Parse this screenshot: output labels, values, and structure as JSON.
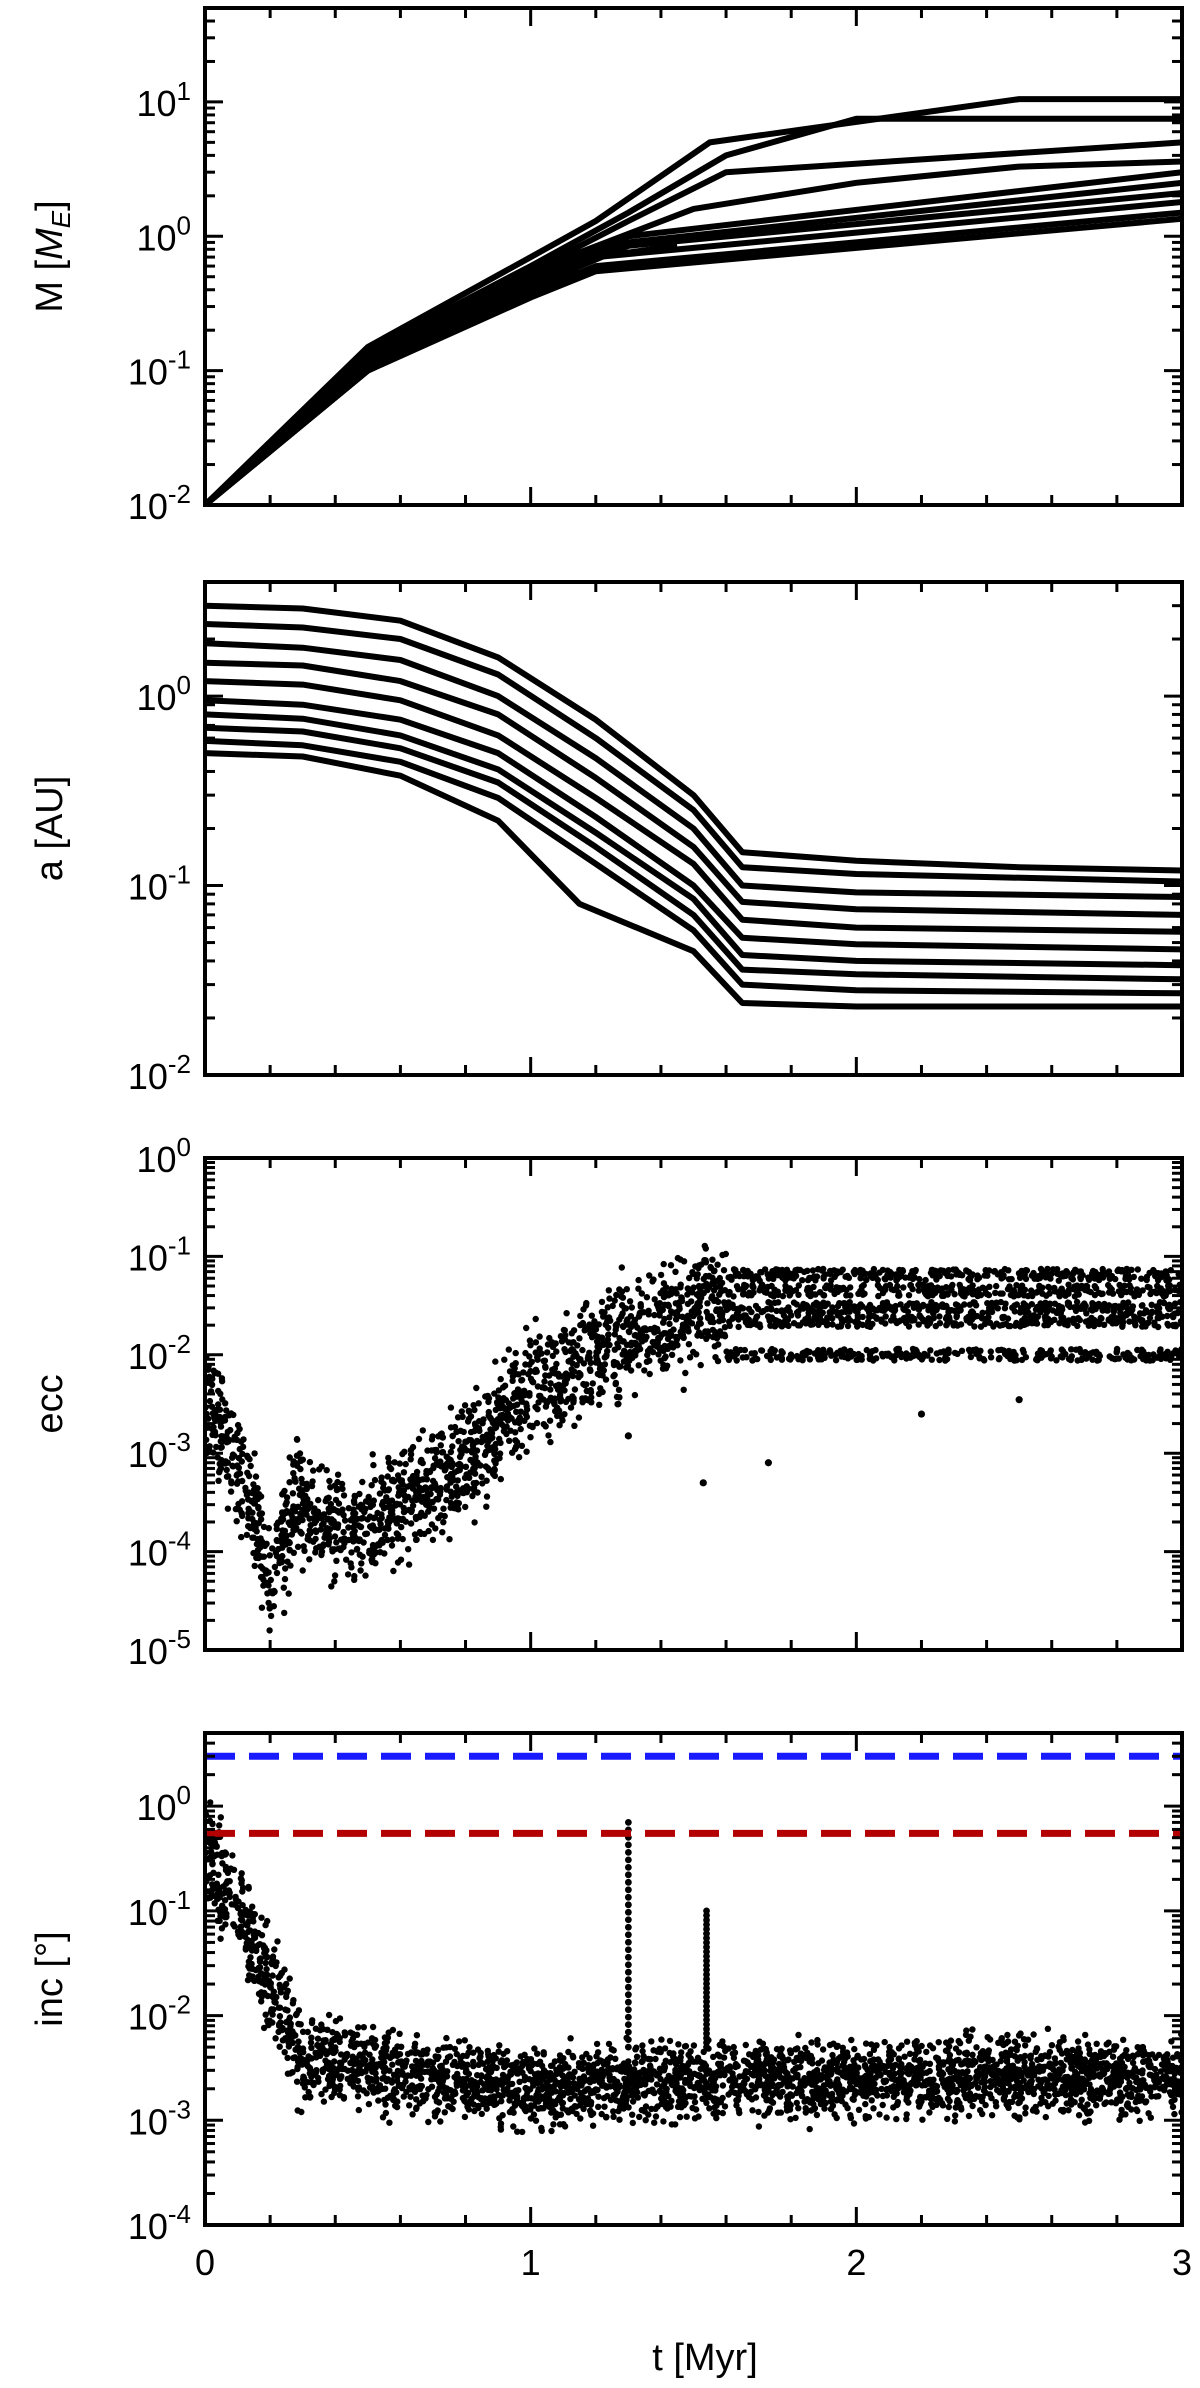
{
  "chart_data": [
    {
      "type": "line",
      "ylabel": "M [M_E]",
      "ylabel_parts": {
        "main": "M [",
        "italic": "M",
        "sub": "E",
        "end": "]"
      },
      "yscale": "log",
      "xlim": [
        0,
        3
      ],
      "ylim": [
        0.01,
        50
      ],
      "xticks": [
        0,
        1,
        2,
        3
      ],
      "yticks": [
        0.01,
        0.1,
        1,
        10
      ],
      "ytick_labels": [
        {
          "base": "10",
          "exp": "-2"
        },
        {
          "base": "10",
          "exp": "-1"
        },
        {
          "base": "10",
          "exp": "0"
        },
        {
          "base": "10",
          "exp": "1"
        }
      ],
      "color": "#000000",
      "series": [
        {
          "t": [
            0,
            0.5,
            1.0,
            1.2,
            1.55,
            2.5,
            3.0
          ],
          "values": [
            0.01,
            0.15,
            0.7,
            1.3,
            5.0,
            10.5,
            10.5
          ]
        },
        {
          "t": [
            0,
            0.5,
            1.0,
            1.3,
            1.6,
            2.0,
            3.0
          ],
          "values": [
            0.01,
            0.14,
            0.6,
            1.5,
            4.0,
            7.5,
            7.5
          ]
        },
        {
          "t": [
            0,
            0.5,
            1.0,
            1.3,
            1.6,
            3.0
          ],
          "values": [
            0.01,
            0.14,
            0.55,
            1.3,
            3.0,
            5.0
          ]
        },
        {
          "t": [
            0,
            0.5,
            1.0,
            1.5,
            2.0,
            2.5,
            3.0
          ],
          "values": [
            0.01,
            0.13,
            0.55,
            1.6,
            2.5,
            3.3,
            3.6
          ]
        },
        {
          "t": [
            0,
            0.5,
            1.0,
            1.3,
            3.0
          ],
          "values": [
            0.01,
            0.12,
            0.5,
            1.0,
            3.0
          ]
        },
        {
          "t": [
            0,
            0.5,
            1.0,
            1.3,
            3.0
          ],
          "values": [
            0.01,
            0.12,
            0.45,
            0.9,
            2.5
          ]
        },
        {
          "t": [
            0,
            0.5,
            1.0,
            1.3,
            3.0
          ],
          "values": [
            0.01,
            0.11,
            0.42,
            0.85,
            2.1
          ]
        },
        {
          "t": [
            0,
            0.5,
            1.0,
            1.2,
            3.0
          ],
          "values": [
            0.01,
            0.11,
            0.4,
            0.7,
            1.8
          ]
        },
        {
          "t": [
            0,
            0.5,
            1.0,
            1.2,
            3.0
          ],
          "values": [
            0.01,
            0.1,
            0.38,
            0.6,
            1.5
          ]
        },
        {
          "t": [
            0,
            0.5,
            1.0,
            1.2,
            3.0
          ],
          "values": [
            0.01,
            0.1,
            0.35,
            0.55,
            1.35
          ]
        },
        {
          "t": [
            0,
            0.5,
            0.95,
            1.05,
            1.2,
            1.45
          ],
          "values": [
            0.01,
            0.1,
            0.34,
            0.52,
            0.7,
            0.85
          ]
        },
        {
          "t": [
            0,
            0.5,
            0.9,
            1.05,
            1.2
          ],
          "values": [
            0.01,
            0.1,
            0.32,
            0.5,
            0.55
          ]
        }
      ]
    },
    {
      "type": "line",
      "ylabel": "a [AU]",
      "yscale": "log",
      "xlim": [
        0,
        3
      ],
      "ylim": [
        0.01,
        4
      ],
      "xticks": [
        0,
        1,
        2,
        3
      ],
      "yticks": [
        0.01,
        0.1,
        1
      ],
      "ytick_labels": [
        {
          "base": "10",
          "exp": "-2"
        },
        {
          "base": "10",
          "exp": "-1"
        },
        {
          "base": "10",
          "exp": "0"
        }
      ],
      "color": "#000000",
      "series": [
        {
          "t": [
            0,
            0.3,
            0.6,
            0.9,
            1.2,
            1.5,
            1.65,
            2.0,
            2.5,
            3.0
          ],
          "values": [
            3.0,
            2.9,
            2.5,
            1.6,
            0.75,
            0.3,
            0.15,
            0.135,
            0.125,
            0.12
          ]
        },
        {
          "t": [
            0,
            0.3,
            0.6,
            0.9,
            1.2,
            1.5,
            1.65,
            2.0,
            3.0
          ],
          "values": [
            2.4,
            2.3,
            2.0,
            1.3,
            0.6,
            0.25,
            0.125,
            0.115,
            0.105
          ]
        },
        {
          "t": [
            0,
            0.3,
            0.6,
            0.9,
            1.2,
            1.5,
            1.65,
            2.0,
            3.0
          ],
          "values": [
            1.9,
            1.8,
            1.55,
            1.0,
            0.47,
            0.2,
            0.1,
            0.092,
            0.087
          ]
        },
        {
          "t": [
            0,
            0.3,
            0.6,
            0.9,
            1.2,
            1.5,
            1.65,
            2.0,
            3.0
          ],
          "values": [
            1.5,
            1.45,
            1.2,
            0.8,
            0.37,
            0.16,
            0.082,
            0.075,
            0.07
          ]
        },
        {
          "t": [
            0,
            0.3,
            0.6,
            0.9,
            1.2,
            1.5,
            1.65,
            2.0,
            3.0
          ],
          "values": [
            1.2,
            1.15,
            0.95,
            0.62,
            0.29,
            0.13,
            0.066,
            0.06,
            0.057
          ]
        },
        {
          "t": [
            0,
            0.3,
            0.6,
            0.9,
            1.2,
            1.5,
            1.65,
            2.0,
            3.0
          ],
          "values": [
            0.95,
            0.9,
            0.75,
            0.5,
            0.23,
            0.1,
            0.053,
            0.049,
            0.046
          ]
        },
        {
          "t": [
            0,
            0.3,
            0.6,
            0.9,
            1.2,
            1.5,
            1.65,
            2.0,
            3.0
          ],
          "values": [
            0.8,
            0.76,
            0.62,
            0.41,
            0.19,
            0.085,
            0.043,
            0.04,
            0.038
          ]
        },
        {
          "t": [
            0,
            0.3,
            0.6,
            0.9,
            1.2,
            1.5,
            1.65,
            2.0,
            3.0
          ],
          "values": [
            0.68,
            0.65,
            0.53,
            0.35,
            0.16,
            0.07,
            0.036,
            0.034,
            0.032
          ]
        },
        {
          "t": [
            0,
            0.3,
            0.6,
            0.9,
            1.2,
            1.5,
            1.65,
            2.0,
            3.0
          ],
          "values": [
            0.58,
            0.55,
            0.45,
            0.29,
            0.13,
            0.058,
            0.03,
            0.028,
            0.027
          ]
        },
        {
          "t": [
            0,
            0.3,
            0.6,
            0.9,
            1.15,
            1.5,
            1.65,
            2.0,
            3.0
          ],
          "values": [
            0.5,
            0.48,
            0.38,
            0.22,
            0.08,
            0.045,
            0.024,
            0.023,
            0.023
          ]
        }
      ]
    },
    {
      "type": "scatter",
      "ylabel": "ecc",
      "yscale": "log",
      "xlim": [
        0,
        3
      ],
      "ylim": [
        1e-05,
        1
      ],
      "xticks": [
        0,
        1,
        2,
        3
      ],
      "yticks": [
        1e-05,
        0.0001,
        0.001,
        0.01,
        0.1,
        1
      ],
      "ytick_labels": [
        {
          "base": "10",
          "exp": "-5"
        },
        {
          "base": "10",
          "exp": "-4"
        },
        {
          "base": "10",
          "exp": "-3"
        },
        {
          "base": "10",
          "exp": "-2"
        },
        {
          "base": "10",
          "exp": "-1"
        },
        {
          "base": "10",
          "exp": "0"
        }
      ],
      "color": "#000000",
      "trend": {
        "t": [
          0,
          0.08,
          0.15,
          0.2,
          0.28,
          0.45,
          0.6,
          0.8,
          1.0,
          1.2,
          1.4,
          1.6,
          2.0,
          2.5,
          3.0
        ],
        "values": [
          0.004,
          0.001,
          0.00025,
          6e-05,
          0.0003,
          0.00015,
          0.0003,
          0.0008,
          0.004,
          0.01,
          0.02,
          0.035,
          0.04,
          0.04,
          0.04
        ]
      },
      "bands": [
        0.065,
        0.045,
        0.03,
        0.022,
        0.01
      ],
      "outliers": [
        {
          "t": 1.3,
          "value": 0.0015
        },
        {
          "t": 1.53,
          "value": 0.0005
        },
        {
          "t": 1.73,
          "value": 0.0008
        },
        {
          "t": 2.2,
          "value": 0.0025
        },
        {
          "t": 2.5,
          "value": 0.0035
        }
      ]
    },
    {
      "type": "scatter",
      "ylabel": "inc [°]",
      "yscale": "log",
      "xlim": [
        0,
        3
      ],
      "ylim": [
        0.0001,
        5
      ],
      "xticks": [
        0,
        1,
        2,
        3
      ],
      "xtick_labels": [
        "0",
        "1",
        "2",
        "3"
      ],
      "xlabel": "t [Myr]",
      "yticks": [
        0.0001,
        0.001,
        0.01,
        0.1,
        1
      ],
      "ytick_labels": [
        {
          "base": "10",
          "exp": "-4"
        },
        {
          "base": "10",
          "exp": "-3"
        },
        {
          "base": "10",
          "exp": "-2"
        },
        {
          "base": "10",
          "exp": "-1"
        },
        {
          "base": "10",
          "exp": "0"
        }
      ],
      "color": "#000000",
      "trend": {
        "t": [
          0,
          0.1,
          0.2,
          0.3,
          0.5,
          1.0,
          1.5,
          2.0,
          2.5,
          3.0
        ],
        "values": [
          0.4,
          0.1,
          0.02,
          0.004,
          0.003,
          0.002,
          0.0025,
          0.0025,
          0.0025,
          0.0025
        ]
      },
      "spikes": [
        {
          "t": 1.3,
          "max": 0.7,
          "min": 0.005
        },
        {
          "t": 1.54,
          "max": 0.1,
          "min": 0.005
        }
      ],
      "hlines": [
        {
          "value": 3.0,
          "color": "#1a1aff",
          "style": "dashed"
        },
        {
          "value": 0.55,
          "color": "#b30000",
          "style": "dashed"
        }
      ]
    }
  ]
}
